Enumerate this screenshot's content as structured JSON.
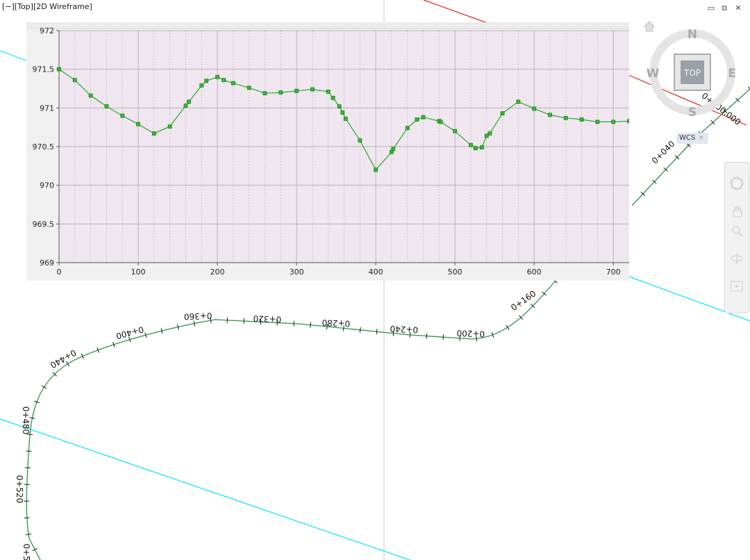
{
  "viewport": {
    "label": "[−][Top][2D Wireframe]"
  },
  "window_controls": {
    "minimize": "▭",
    "restore": "⧉",
    "close": "✕"
  },
  "viewcube": {
    "north": "N",
    "south": "S",
    "east": "E",
    "west": "W",
    "face": "TOP",
    "wcs_label": "WCS",
    "home_icon": "home-icon"
  },
  "navigation_bar": {
    "tools": [
      "steering-wheel-icon",
      "pan-icon",
      "zoom-icon",
      "orbit-icon",
      "showmotion-icon"
    ]
  },
  "alignment": {
    "start_label": "0+000.000",
    "station_labels": [
      "0+040",
      "0+160",
      "0+200",
      "0+240",
      "0+280",
      "0+320",
      "0+360",
      "0+400",
      "0+440",
      "0+480",
      "0+520",
      "0+5"
    ]
  },
  "colors": {
    "alignment": "#2f8f4e",
    "cyan_lines": "#00e5ff",
    "red_line": "#e02020",
    "profile_line": "#22aa22",
    "profile_marker": "#33bb33",
    "plot_bg": "#f0e6f0"
  },
  "chart_data": {
    "type": "line",
    "title": "",
    "xlabel": "",
    "ylabel": "",
    "xlim": [
      0,
      720
    ],
    "ylim": [
      969,
      972
    ],
    "x_ticks": [
      "0",
      "100",
      "200",
      "300",
      "400",
      "500",
      "600",
      "700"
    ],
    "y_ticks": [
      "969",
      "969.5",
      "970",
      "970.5",
      "971",
      "971.5",
      "972"
    ],
    "grid": true,
    "series": [
      {
        "x": [
          0,
          20,
          40,
          60,
          80,
          100,
          120,
          140,
          160,
          164,
          180,
          186,
          200,
          208,
          220,
          240,
          260,
          280,
          300,
          320,
          340,
          346,
          354,
          358,
          362,
          380,
          400,
          420,
          422,
          440,
          452,
          460,
          480,
          482,
          500,
          520,
          526,
          534,
          540,
          544,
          560,
          580,
          600,
          620,
          640,
          660,
          680,
          700,
          720
        ],
        "y": [
          971.5,
          971.36,
          971.16,
          971.02,
          970.9,
          970.79,
          970.67,
          970.76,
          971.03,
          971.08,
          971.29,
          971.35,
          971.4,
          971.36,
          971.32,
          971.26,
          971.19,
          971.2,
          971.22,
          971.24,
          971.21,
          971.13,
          971.02,
          970.94,
          970.86,
          970.58,
          970.2,
          970.43,
          970.47,
          970.74,
          970.85,
          970.88,
          970.83,
          970.82,
          970.7,
          970.52,
          970.48,
          970.49,
          970.64,
          970.67,
          970.93,
          971.08,
          970.99,
          970.91,
          970.87,
          970.85,
          970.82,
          970.82,
          970.83
        ]
      }
    ]
  }
}
